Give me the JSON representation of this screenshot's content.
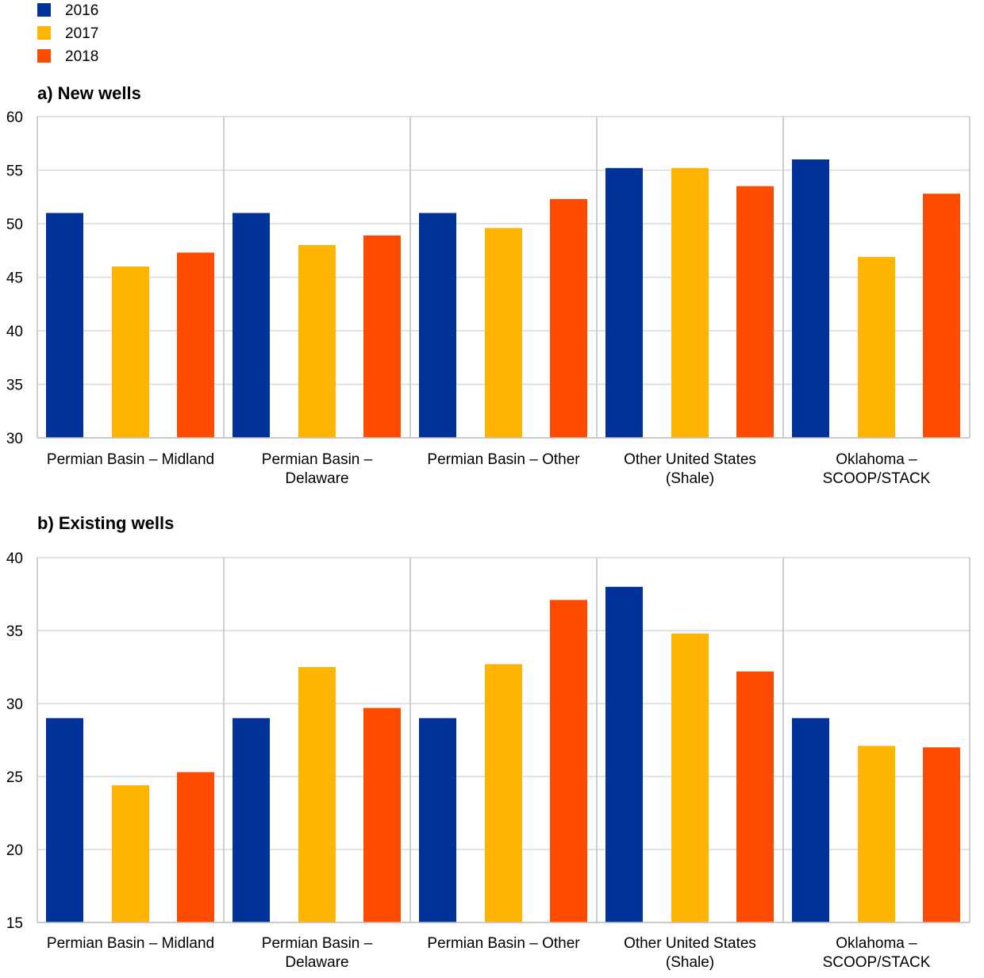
{
  "legend": [
    {
      "label": "2016",
      "color": "#003299"
    },
    {
      "label": "2017",
      "color": "#FFB400"
    },
    {
      "label": "2018",
      "color": "#FF4B00"
    }
  ],
  "colors": {
    "grid": "#d9d9d9",
    "axis": "#bfbfbf"
  },
  "chart_data": [
    {
      "type": "bar",
      "title": "a) New wells",
      "xlabel": "",
      "ylabel": "",
      "ylim": [
        30,
        60
      ],
      "yticks": [
        "30",
        "35",
        "40",
        "45",
        "50",
        "55",
        "60"
      ],
      "grid": true,
      "legend_position": "top-left",
      "categories": [
        [
          "Permian Basin – Midland"
        ],
        [
          "Permian Basin –",
          "Delaware"
        ],
        [
          "Permian Basin – Other"
        ],
        [
          "Other United States",
          "(Shale)"
        ],
        [
          "Oklahoma –",
          "SCOOP/STACK"
        ]
      ],
      "series": [
        {
          "name": "2016",
          "values": [
            51.0,
            51.0,
            51.0,
            55.2,
            56.0
          ]
        },
        {
          "name": "2017",
          "values": [
            46.0,
            48.0,
            49.6,
            55.2,
            46.9
          ]
        },
        {
          "name": "2018",
          "values": [
            47.3,
            48.9,
            52.3,
            53.5,
            52.8
          ]
        }
      ]
    },
    {
      "type": "bar",
      "title": "b) Existing wells",
      "xlabel": "",
      "ylabel": "",
      "ylim": [
        15,
        40
      ],
      "yticks": [
        "15",
        "20",
        "25",
        "30",
        "35",
        "40"
      ],
      "grid": true,
      "categories": [
        [
          "Permian Basin – Midland"
        ],
        [
          "Permian Basin –",
          "Delaware"
        ],
        [
          "Permian Basin – Other"
        ],
        [
          "Other United States",
          "(Shale)"
        ],
        [
          "Oklahoma –",
          "SCOOP/STACK"
        ]
      ],
      "series": [
        {
          "name": "2016",
          "values": [
            29.0,
            29.0,
            29.0,
            38.0,
            29.0
          ]
        },
        {
          "name": "2017",
          "values": [
            24.4,
            32.5,
            32.7,
            34.8,
            27.1
          ]
        },
        {
          "name": "2018",
          "values": [
            25.3,
            29.7,
            37.1,
            32.2,
            27.0
          ]
        }
      ]
    }
  ]
}
